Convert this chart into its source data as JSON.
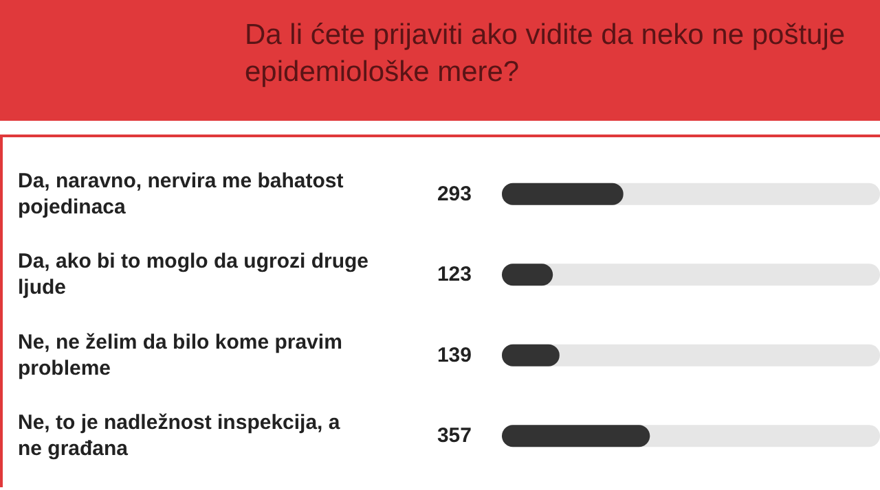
{
  "chart_data": {
    "type": "bar",
    "orientation": "horizontal",
    "title": "Da li ćete prijaviti ako vidite da neko ne poštuje epidemiološke mere?",
    "categories": [
      "Da, naravno, nervira me bahatost pojedinaca",
      "Da, ako bi to moglo da ugrozi druge ljude",
      "Ne, ne želim da bilo kome pravim probleme",
      "Ne, to je nadležnost inspekcija, a ne građana"
    ],
    "values": [
      293,
      123,
      139,
      357
    ],
    "color": "#333333",
    "data_labels": true
  }
}
